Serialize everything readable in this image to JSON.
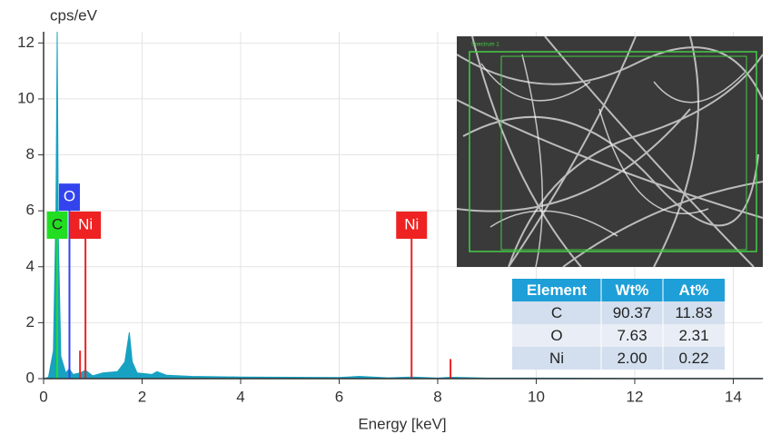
{
  "chart_data": {
    "type": "spectrum",
    "y_label": "cps/eV",
    "x_label": "Energy [keV]",
    "color": "#17a2c2",
    "x": [
      0,
      0.1,
      0.2,
      0.25,
      0.277,
      0.3,
      0.35,
      0.45,
      0.52,
      0.6,
      0.74,
      0.85,
      1.0,
      1.2,
      1.5,
      1.65,
      1.74,
      1.8,
      1.9,
      2.2,
      2.3,
      2.5,
      3,
      4,
      5,
      6,
      6.4,
      7,
      7.47,
      8,
      8.26,
      9,
      10,
      12,
      14,
      14.6
    ],
    "values": [
      0,
      0.05,
      1,
      6,
      12.4,
      5,
      0.8,
      0.2,
      0.35,
      0.15,
      0.2,
      0.3,
      0.1,
      0.2,
      0.25,
      0.6,
      1.65,
      0.6,
      0.2,
      0.15,
      0.25,
      0.12,
      0.08,
      0.06,
      0.05,
      0.04,
      0.08,
      0.03,
      0.06,
      0.02,
      0.05,
      0.02,
      0.02,
      0.01,
      0.01,
      0.01
    ],
    "xlim": [
      0,
      14.6
    ],
    "ylim": [
      0,
      12.4
    ],
    "xticks": [
      0,
      2,
      4,
      6,
      8,
      10,
      12,
      14
    ],
    "yticks": [
      0,
      2,
      4,
      6,
      8,
      10,
      12
    ],
    "grid": true,
    "markers": [
      {
        "label": "C",
        "x": 0.277,
        "height": 5.0,
        "color": "#22dd22"
      },
      {
        "label": "O",
        "x": 0.525,
        "height": 6.0,
        "color": "#3344ee"
      },
      {
        "label": "Ni",
        "x": 0.85,
        "height": 5.0,
        "color": "#ee2222"
      },
      {
        "label": "Ni",
        "x": 7.47,
        "height": 5.0,
        "color": "#ee2222"
      },
      {
        "label": null,
        "x": 0.74,
        "height": 1.0,
        "color": "#ee2222"
      },
      {
        "label": null,
        "x": 8.26,
        "height": 0.7,
        "color": "#ee2222"
      }
    ]
  },
  "inset": {
    "label": "Spectrum 1"
  },
  "table": {
    "header": [
      "Element",
      "Wt%",
      "At%"
    ],
    "rows": [
      [
        "C",
        "90.37",
        "11.83"
      ],
      [
        "O",
        "7.63",
        "2.31"
      ],
      [
        "Ni",
        "2.00",
        "0.22"
      ]
    ]
  }
}
